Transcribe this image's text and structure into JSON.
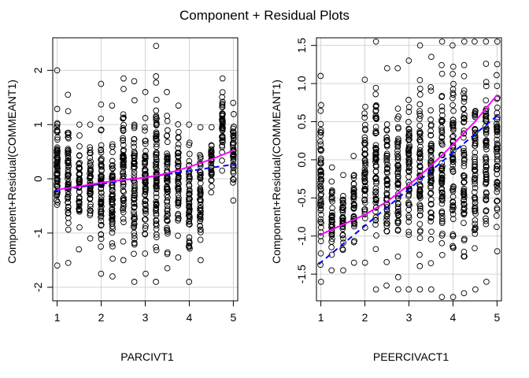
{
  "figure": {
    "title": "Component + Residual Plots"
  },
  "chart_data": [
    {
      "type": "scatter",
      "xlabel": "PARCIVT1",
      "ylabel": "Component+Residual(COMMEANT1)",
      "xlim": [
        0.9,
        5.1
      ],
      "ylim": [
        -2.25,
        2.6
      ],
      "xticks": [
        "1",
        "2",
        "3",
        "4",
        "5"
      ],
      "yticks": [
        "-2",
        "-1",
        "0",
        "1",
        "2"
      ],
      "grid": true,
      "x_levels": [
        1,
        1.25,
        1.5,
        1.75,
        2,
        2.25,
        2.5,
        2.75,
        3,
        3.25,
        3.5,
        3.75,
        4,
        4.25,
        4.5,
        4.75,
        5
      ],
      "residual_spread": [
        {
          "x": 1,
          "y_min": -1.6,
          "y_max": 2.0
        },
        {
          "x": 1.25,
          "y_min": -1.55,
          "y_max": 1.55
        },
        {
          "x": 1.5,
          "y_min": -1.3,
          "y_max": 1.0
        },
        {
          "x": 1.75,
          "y_min": -1.1,
          "y_max": 1.0
        },
        {
          "x": 2,
          "y_min": -1.75,
          "y_max": 1.75
        },
        {
          "x": 2.25,
          "y_min": -1.8,
          "y_max": 1.35
        },
        {
          "x": 2.5,
          "y_min": -1.5,
          "y_max": 1.85
        },
        {
          "x": 2.75,
          "y_min": -1.9,
          "y_max": 1.8
        },
        {
          "x": 3,
          "y_min": -1.75,
          "y_max": 1.6
        },
        {
          "x": 3.25,
          "y_min": -1.9,
          "y_max": 2.45
        },
        {
          "x": 3.5,
          "y_min": -1.65,
          "y_max": 1.6
        },
        {
          "x": 3.75,
          "y_min": -1.45,
          "y_max": 1.35
        },
        {
          "x": 4,
          "y_min": -1.9,
          "y_max": 1.0
        },
        {
          "x": 4.25,
          "y_min": -1.5,
          "y_max": 0.95
        },
        {
          "x": 4.5,
          "y_min": -0.25,
          "y_max": 0.95
        },
        {
          "x": 4.75,
          "y_min": 0.15,
          "y_max": 1.85
        },
        {
          "x": 5,
          "y_min": -0.4,
          "y_max": 1.4
        }
      ],
      "linear_fit": {
        "name": "linear fit",
        "x": [
          0.95,
          5.05
        ],
        "y": [
          -0.22,
          0.27
        ],
        "color": "#0000ff",
        "dash": true
      },
      "smooth_fit": {
        "name": "smooth",
        "x": [
          1,
          1.5,
          2,
          2.5,
          3,
          3.5,
          4,
          4.5,
          5
        ],
        "y": [
          -0.2,
          -0.14,
          -0.07,
          -0.02,
          0.02,
          0.1,
          0.22,
          0.36,
          0.52
        ],
        "color": "#ff00ff"
      },
      "seed": 12345
    },
    {
      "type": "scatter",
      "xlabel": "PEERCIVACT1",
      "ylabel": "Component+Residual(COMMEANT1)",
      "xlim": [
        0.9,
        5.1
      ],
      "ylim": [
        -1.85,
        1.6
      ],
      "xticks": [
        "1",
        "2",
        "3",
        "4",
        "5"
      ],
      "yticks": [
        "-1.5",
        "-1.0",
        "-0.5",
        "0.0",
        "0.5",
        "1.0",
        "1.5"
      ],
      "grid": true,
      "x_levels": [
        1,
        1.25,
        1.5,
        1.75,
        2,
        2.25,
        2.5,
        2.75,
        3,
        3.25,
        3.5,
        3.75,
        4,
        4.25,
        4.5,
        4.75,
        5
      ],
      "residual_spread": [
        {
          "x": 1,
          "y_min": -1.6,
          "y_max": 1.1
        },
        {
          "x": 1.25,
          "y_min": -1.45,
          "y_max": -0.1
        },
        {
          "x": 1.5,
          "y_min": -1.45,
          "y_max": -0.2
        },
        {
          "x": 1.75,
          "y_min": -1.35,
          "y_max": 0.05
        },
        {
          "x": 2,
          "y_min": -1.35,
          "y_max": 1.05
        },
        {
          "x": 2.25,
          "y_min": -1.7,
          "y_max": 1.55
        },
        {
          "x": 2.5,
          "y_min": -1.65,
          "y_max": 1.2
        },
        {
          "x": 2.75,
          "y_min": -1.7,
          "y_max": 1.2
        },
        {
          "x": 3,
          "y_min": -1.7,
          "y_max": 1.3
        },
        {
          "x": 3.25,
          "y_min": -1.7,
          "y_max": 1.5
        },
        {
          "x": 3.5,
          "y_min": -1.7,
          "y_max": 1.35
        },
        {
          "x": 3.75,
          "y_min": -1.8,
          "y_max": 1.55
        },
        {
          "x": 4,
          "y_min": -1.8,
          "y_max": 1.5
        },
        {
          "x": 4.25,
          "y_min": -1.75,
          "y_max": 1.55
        },
        {
          "x": 4.5,
          "y_min": -1.7,
          "y_max": 1.55
        },
        {
          "x": 4.75,
          "y_min": -1.6,
          "y_max": 1.55
        },
        {
          "x": 5,
          "y_min": -1.2,
          "y_max": 1.55
        }
      ],
      "linear_fit": {
        "name": "linear fit",
        "x": [
          0.95,
          5.05
        ],
        "y": [
          -1.37,
          0.6
        ],
        "color": "#0000ff",
        "dash": true
      },
      "smooth_fit": {
        "name": "smooth",
        "x": [
          1,
          1.5,
          2,
          2.5,
          3,
          3.5,
          4,
          4.5,
          5
        ],
        "y": [
          -0.98,
          -0.85,
          -0.72,
          -0.55,
          -0.33,
          -0.08,
          0.2,
          0.5,
          0.85
        ],
        "color": "#ff00ff"
      },
      "seed": 67890
    }
  ]
}
